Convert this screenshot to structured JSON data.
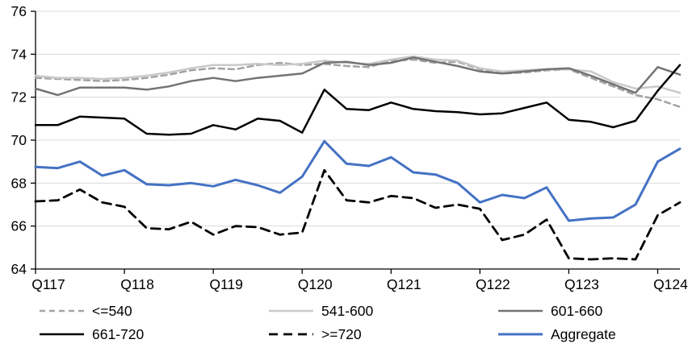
{
  "chart_data": {
    "type": "line",
    "title": "",
    "xlabel": "",
    "ylabel": "",
    "n_points": 30,
    "ylim": [
      64,
      76
    ],
    "y_ticks": [
      64,
      66,
      68,
      70,
      72,
      74,
      76
    ],
    "x_tick_labels": [
      "Q117",
      "Q118",
      "Q119",
      "Q120",
      "Q121",
      "Q122",
      "Q123",
      "Q124"
    ],
    "x_tick_indices": [
      0,
      4,
      8,
      12,
      16,
      20,
      24,
      28
    ],
    "grid": true,
    "gridline_color": "#d9d9d9",
    "axis_color": "#000000",
    "legend_position": "bottom",
    "series": [
      {
        "name": "<=540",
        "color": "#a3a3a3",
        "line_style": "dashed",
        "dash": "7 5",
        "width": 2.5,
        "values": [
          72.9,
          72.85,
          72.8,
          72.75,
          72.8,
          72.9,
          73.05,
          73.25,
          73.35,
          73.3,
          73.5,
          73.6,
          73.5,
          73.55,
          73.45,
          73.4,
          73.7,
          73.75,
          73.6,
          73.65,
          73.3,
          73.1,
          73.15,
          73.25,
          73.3,
          72.9,
          72.5,
          72.1,
          71.9,
          71.55
        ]
      },
      {
        "name": "541-600",
        "color": "#c9c9c9",
        "line_style": "solid",
        "dash": "",
        "width": 2.5,
        "values": [
          73.0,
          72.9,
          72.9,
          72.85,
          72.9,
          73.0,
          73.15,
          73.35,
          73.5,
          73.5,
          73.55,
          73.5,
          73.55,
          73.7,
          73.6,
          73.55,
          73.75,
          73.9,
          73.75,
          73.7,
          73.35,
          73.2,
          73.25,
          73.3,
          73.3,
          73.2,
          72.7,
          72.4,
          72.5,
          72.2
        ]
      },
      {
        "name": "601-660",
        "color": "#737373",
        "line_style": "solid",
        "dash": "",
        "width": 2.5,
        "values": [
          72.4,
          72.1,
          72.45,
          72.45,
          72.45,
          72.35,
          72.5,
          72.75,
          72.9,
          72.75,
          72.9,
          73.0,
          73.1,
          73.6,
          73.65,
          73.5,
          73.6,
          73.85,
          73.65,
          73.45,
          73.2,
          73.1,
          73.2,
          73.3,
          73.35,
          73.0,
          72.6,
          72.2,
          73.4,
          73.05
        ]
      },
      {
        "name": "661-720",
        "color": "#000000",
        "line_style": "solid",
        "dash": "",
        "width": 2.5,
        "values": [
          70.7,
          70.7,
          71.1,
          71.05,
          71.0,
          70.3,
          70.25,
          70.3,
          70.7,
          70.5,
          71.0,
          70.9,
          70.35,
          72.35,
          71.45,
          71.4,
          71.75,
          71.45,
          71.35,
          71.3,
          71.2,
          71.25,
          71.5,
          71.75,
          70.95,
          70.85,
          70.6,
          70.9,
          72.3,
          73.5
        ]
      },
      {
        "name": ">=720",
        "color": "#000000",
        "line_style": "dashed",
        "dash": "11 7",
        "width": 2.8,
        "values": [
          67.15,
          67.2,
          67.7,
          67.1,
          66.9,
          65.9,
          65.85,
          66.2,
          65.6,
          66.0,
          65.95,
          65.6,
          65.7,
          68.6,
          67.2,
          67.1,
          67.4,
          67.3,
          66.85,
          67.0,
          66.8,
          65.35,
          65.6,
          66.3,
          64.5,
          64.45,
          64.5,
          64.45,
          66.5,
          67.1
        ]
      },
      {
        "name": "Aggregate",
        "color": "#4472c4",
        "line_style": "solid",
        "dash": "",
        "width": 3,
        "values": [
          68.75,
          68.7,
          69.0,
          68.35,
          68.6,
          67.95,
          67.9,
          68.0,
          67.85,
          68.15,
          67.9,
          67.55,
          68.3,
          69.95,
          68.9,
          68.8,
          69.2,
          68.5,
          68.4,
          68.0,
          67.1,
          67.45,
          67.3,
          67.8,
          66.25,
          66.35,
          66.4,
          67.0,
          69.0,
          69.6
        ]
      }
    ]
  }
}
